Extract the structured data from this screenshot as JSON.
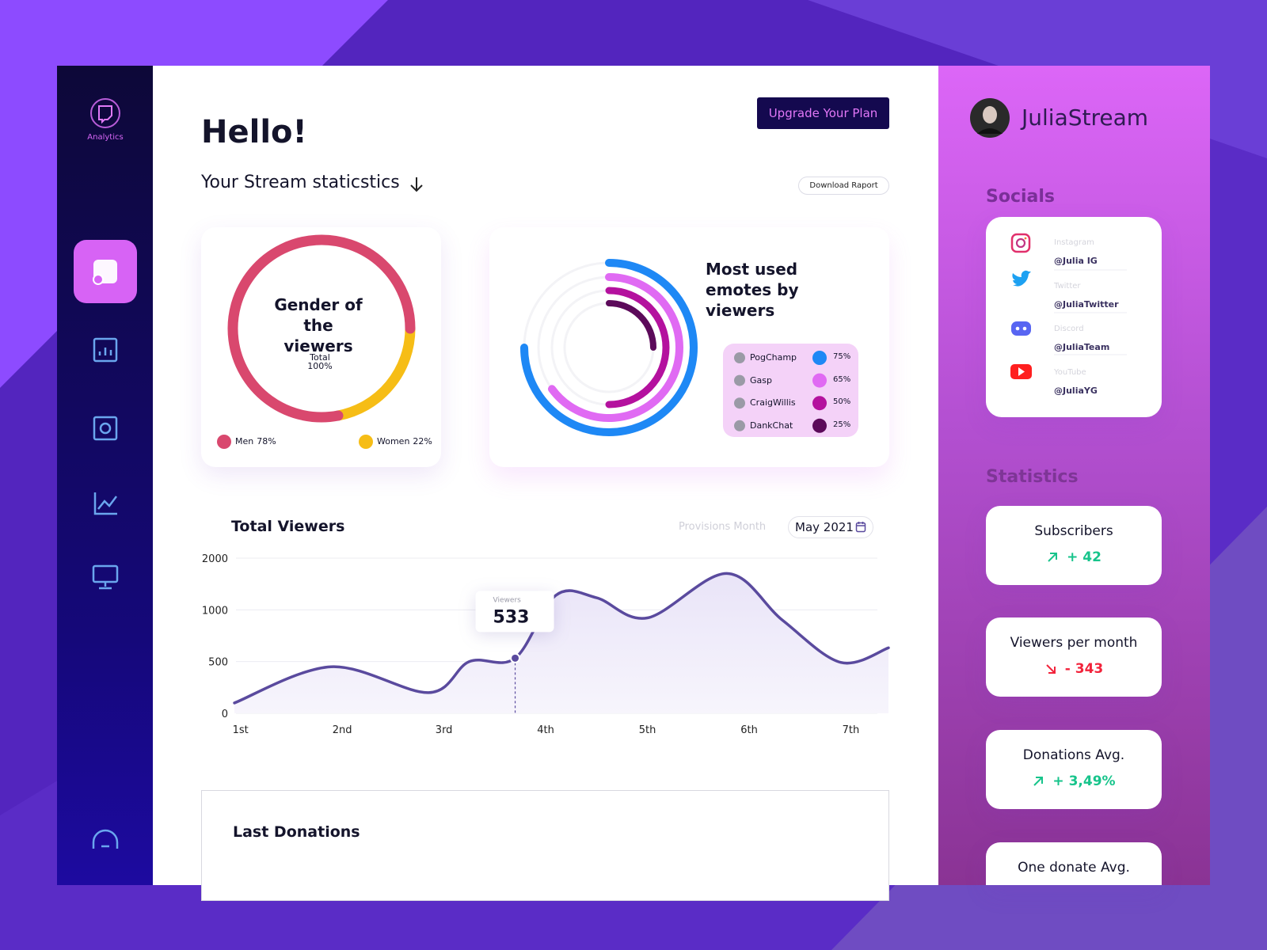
{
  "sidebar": {
    "logo_label": "Analytics"
  },
  "header": {
    "greeting": "Hello!",
    "subtitle": "Your Stream staticstics",
    "upgrade_button": "Upgrade Your Plan",
    "download_button": "Download Raport"
  },
  "gender_chart": {
    "type": "donut",
    "title": "Gender of the viewers",
    "center_label": "Total",
    "center_value": {
      "value": 100,
      "label": "100%"
    },
    "categories": [
      "Men",
      "Women"
    ],
    "values": [
      78,
      22
    ],
    "value_labels": [
      "78%",
      "22%"
    ],
    "colors": [
      "#d9486e",
      "#f6bd16"
    ]
  },
  "emotes_chart": {
    "type": "radial-bar",
    "title": "Most used emotes by viewers",
    "categories": [
      "PogChamp",
      "Gasp",
      "CraigWillis",
      "DankChat"
    ],
    "values": [
      75,
      65,
      50,
      25
    ],
    "value_labels": [
      "75%",
      "65%",
      "50%",
      "25%"
    ],
    "colors": [
      "#1e88f5",
      "#e06af3",
      "#b4119e",
      "#5c0a5a"
    ]
  },
  "viewers_chart": {
    "type": "line",
    "title": "Total Viewers",
    "filter_label": "Provisions Month",
    "period": "May 2021",
    "series_name": "Viewers",
    "color": "#5a4a9e",
    "x": [
      0.94,
      1.89,
      2.85,
      3.25,
      3.7,
      4.1,
      4.5,
      5.0,
      5.78,
      6.33,
      6.9,
      7.37
    ],
    "values": [
      100,
      450,
      200,
      500,
      533,
      1281,
      1234,
      922,
      1703,
      898,
      492,
      633
    ],
    "highlight_index": 4,
    "xlim": [
      0.94,
      7.37
    ],
    "xticks": [
      {
        "value": 1,
        "label": "1st"
      },
      {
        "value": 2,
        "label": "2nd"
      },
      {
        "value": 3,
        "label": "3rd"
      },
      {
        "value": 4,
        "label": "4th"
      },
      {
        "value": 5,
        "label": "5th"
      },
      {
        "value": 6,
        "label": "6th"
      },
      {
        "value": 7,
        "label": "7th"
      }
    ],
    "ylim": [
      0,
      2000
    ],
    "yticks": [
      0,
      500,
      1000,
      2000
    ],
    "grid": true
  },
  "donations": {
    "title": "Last Donations"
  },
  "profile": {
    "name": "JuliaStream"
  },
  "socials": {
    "title": "Socials",
    "items": [
      {
        "platform": "Instagram",
        "handle": "@Julia IG"
      },
      {
        "platform": "Twitter",
        "handle": "@JuliaTwitter"
      },
      {
        "platform": "Discord",
        "handle": "@JuliaTeam"
      },
      {
        "platform": "YouTube",
        "handle": "@JuliaYG"
      }
    ]
  },
  "statistics": {
    "title": "Statistics",
    "trend_colors": {
      "up": "#17c48b",
      "down": "#f2233b"
    },
    "items": [
      {
        "title": "Subscribers",
        "change": "+ 42",
        "trend": "up"
      },
      {
        "title": "Viewers per month",
        "change": "- 343",
        "trend": "down"
      },
      {
        "title": "Donations Avg.",
        "change": "+ 3,49%",
        "trend": "up"
      },
      {
        "title": "One donate Avg."
      }
    ]
  }
}
